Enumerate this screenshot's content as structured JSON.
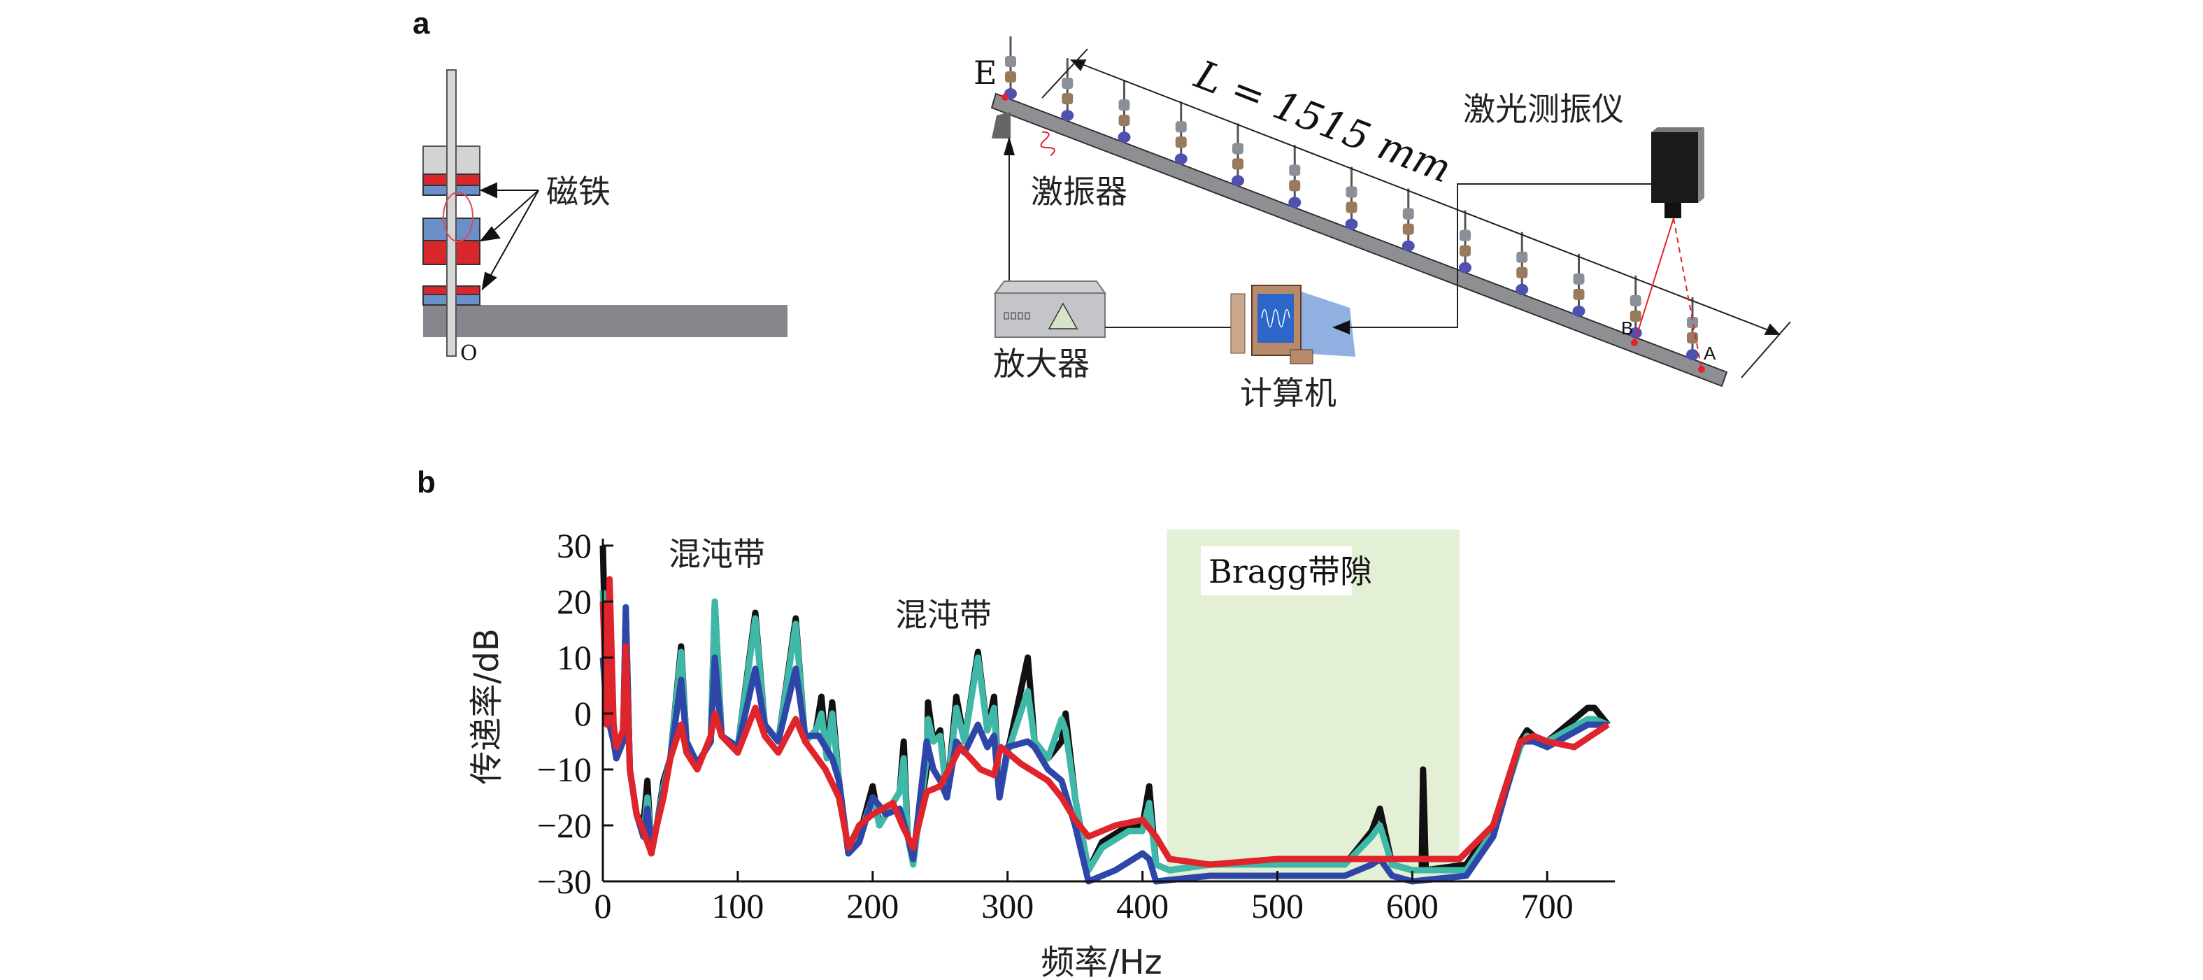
{
  "panel_a": {
    "label": "a",
    "magnet_label": "磁铁",
    "origin_label": "O",
    "endpoint_label": "E",
    "length_label": "L = 1515 mm",
    "vibrometer_label": "激光测振仪",
    "shaker_label": "激振器",
    "amplifier_label": "放大器",
    "computer_label": "计算机",
    "point_b_label": "B",
    "point_a_label": "A"
  },
  "panel_b": {
    "label": "b",
    "chaos_band_label_1": "混沌带",
    "chaos_band_label_2": "混沌带",
    "bragg_gap_label": "Bragg带隙"
  },
  "colors": {
    "black": "#111111",
    "teal": "#3fb8a8",
    "blue": "#2e46a8",
    "red": "#e0242c",
    "gap_fill": "#e4f0d6",
    "magnet_red": "#d9262b",
    "magnet_blue": "#6b8fc9"
  },
  "chart_data": {
    "type": "line",
    "title": "",
    "xlabel": "频率/Hz",
    "ylabel": "传递率/dB",
    "xlim": [
      0,
      750
    ],
    "ylim": [
      -30,
      30
    ],
    "xticks": [
      0,
      100,
      200,
      300,
      400,
      500,
      600,
      700
    ],
    "yticks": [
      30,
      20,
      10,
      0,
      -10,
      -20,
      -30
    ],
    "ytick_labels": [
      "30",
      "20",
      "10",
      "0",
      "−10",
      "−20",
      "−30"
    ],
    "shaded_region": {
      "x": [
        418,
        635
      ],
      "label": "Bragg带隙"
    },
    "series": [
      {
        "name": "black",
        "color": "#111111",
        "points": [
          [
            0,
            30
          ],
          [
            3,
            0
          ],
          [
            8,
            -5
          ],
          [
            10,
            -8
          ],
          [
            15,
            -5
          ],
          [
            17,
            18
          ],
          [
            20,
            -10
          ],
          [
            25,
            -18
          ],
          [
            30,
            -20
          ],
          [
            33,
            -12
          ],
          [
            36,
            -25
          ],
          [
            40,
            -20
          ],
          [
            45,
            -12
          ],
          [
            50,
            -8
          ],
          [
            58,
            12
          ],
          [
            62,
            -5
          ],
          [
            70,
            -9
          ],
          [
            80,
            -5
          ],
          [
            83,
            20
          ],
          [
            88,
            -4
          ],
          [
            100,
            -6
          ],
          [
            113,
            18
          ],
          [
            120,
            -2
          ],
          [
            130,
            -5
          ],
          [
            143,
            17
          ],
          [
            150,
            -5
          ],
          [
            158,
            -3
          ],
          [
            162,
            3
          ],
          [
            166,
            -8
          ],
          [
            170,
            2
          ],
          [
            175,
            -12
          ],
          [
            182,
            -25
          ],
          [
            190,
            -22
          ],
          [
            200,
            -13
          ],
          [
            205,
            -20
          ],
          [
            210,
            -18
          ],
          [
            220,
            -14
          ],
          [
            223,
            -5
          ],
          [
            226,
            -22
          ],
          [
            230,
            -26
          ],
          [
            240,
            -10
          ],
          [
            241,
            2
          ],
          [
            245,
            -5
          ],
          [
            250,
            -3
          ],
          [
            255,
            -15
          ],
          [
            262,
            3
          ],
          [
            268,
            -5
          ],
          [
            278,
            11
          ],
          [
            285,
            -3
          ],
          [
            290,
            3
          ],
          [
            294,
            -15
          ],
          [
            300,
            -7
          ],
          [
            315,
            10
          ],
          [
            320,
            -5
          ],
          [
            330,
            -8
          ],
          [
            340,
            -5
          ],
          [
            343,
            0
          ],
          [
            350,
            -15
          ],
          [
            360,
            -28
          ],
          [
            370,
            -23
          ],
          [
            390,
            -20
          ],
          [
            400,
            -20
          ],
          [
            405,
            -13
          ],
          [
            410,
            -27
          ],
          [
            420,
            -28
          ],
          [
            450,
            -27
          ],
          [
            500,
            -27
          ],
          [
            550,
            -27
          ],
          [
            570,
            -21
          ],
          [
            576,
            -17
          ],
          [
            585,
            -27
          ],
          [
            600,
            -28
          ],
          [
            607,
            -28
          ],
          [
            608,
            -10
          ],
          [
            610,
            -28
          ],
          [
            640,
            -27
          ],
          [
            660,
            -20
          ],
          [
            680,
            -5
          ],
          [
            685,
            -3
          ],
          [
            695,
            -5
          ],
          [
            700,
            -5
          ],
          [
            730,
            1
          ],
          [
            735,
            1
          ],
          [
            745,
            -2
          ]
        ]
      },
      {
        "name": "teal",
        "color": "#3fb8a8",
        "points": [
          [
            0,
            22
          ],
          [
            3,
            0
          ],
          [
            8,
            -5
          ],
          [
            10,
            -8
          ],
          [
            15,
            -5
          ],
          [
            17,
            18
          ],
          [
            20,
            -10
          ],
          [
            25,
            -18
          ],
          [
            30,
            -22
          ],
          [
            33,
            -15
          ],
          [
            36,
            -24
          ],
          [
            40,
            -20
          ],
          [
            45,
            -13
          ],
          [
            50,
            -8
          ],
          [
            58,
            11
          ],
          [
            62,
            -5
          ],
          [
            70,
            -9
          ],
          [
            80,
            -5
          ],
          [
            83,
            20
          ],
          [
            88,
            -4
          ],
          [
            100,
            -6
          ],
          [
            113,
            17
          ],
          [
            120,
            -2
          ],
          [
            130,
            -5
          ],
          [
            143,
            16
          ],
          [
            150,
            -5
          ],
          [
            158,
            -3
          ],
          [
            162,
            0
          ],
          [
            166,
            -8
          ],
          [
            170,
            0
          ],
          [
            175,
            -12
          ],
          [
            182,
            -25
          ],
          [
            190,
            -22
          ],
          [
            200,
            -15
          ],
          [
            205,
            -20
          ],
          [
            210,
            -18
          ],
          [
            220,
            -14
          ],
          [
            223,
            -8
          ],
          [
            226,
            -22
          ],
          [
            230,
            -27
          ],
          [
            240,
            -8
          ],
          [
            241,
            -1
          ],
          [
            245,
            -5
          ],
          [
            250,
            -4
          ],
          [
            255,
            -15
          ],
          [
            262,
            1
          ],
          [
            268,
            -5
          ],
          [
            278,
            10
          ],
          [
            285,
            -3
          ],
          [
            290,
            1
          ],
          [
            294,
            -15
          ],
          [
            300,
            -7
          ],
          [
            315,
            4
          ],
          [
            320,
            -5
          ],
          [
            330,
            -8
          ],
          [
            340,
            -1
          ],
          [
            343,
            -3
          ],
          [
            350,
            -15
          ],
          [
            360,
            -28
          ],
          [
            370,
            -24
          ],
          [
            390,
            -21
          ],
          [
            400,
            -21
          ],
          [
            405,
            -16
          ],
          [
            410,
            -27
          ],
          [
            420,
            -28
          ],
          [
            450,
            -27
          ],
          [
            500,
            -27
          ],
          [
            550,
            -27
          ],
          [
            570,
            -22
          ],
          [
            576,
            -20
          ],
          [
            585,
            -27
          ],
          [
            600,
            -28
          ],
          [
            640,
            -28
          ],
          [
            660,
            -21
          ],
          [
            680,
            -6
          ],
          [
            685,
            -4
          ],
          [
            695,
            -5
          ],
          [
            700,
            -5
          ],
          [
            730,
            -1
          ],
          [
            735,
            -1
          ],
          [
            745,
            -2
          ]
        ]
      },
      {
        "name": "blue",
        "color": "#2e46a8",
        "points": [
          [
            0,
            10
          ],
          [
            3,
            0
          ],
          [
            8,
            -5
          ],
          [
            10,
            -8
          ],
          [
            15,
            -5
          ],
          [
            17,
            19
          ],
          [
            20,
            -10
          ],
          [
            25,
            -18
          ],
          [
            30,
            -22
          ],
          [
            33,
            -17
          ],
          [
            36,
            -24
          ],
          [
            40,
            -20
          ],
          [
            45,
            -14
          ],
          [
            50,
            -8
          ],
          [
            58,
            6
          ],
          [
            62,
            -5
          ],
          [
            70,
            -9
          ],
          [
            80,
            -5
          ],
          [
            83,
            10
          ],
          [
            88,
            -4
          ],
          [
            100,
            -6
          ],
          [
            113,
            8
          ],
          [
            120,
            -2
          ],
          [
            130,
            -5
          ],
          [
            143,
            8
          ],
          [
            150,
            -4
          ],
          [
            160,
            -4
          ],
          [
            170,
            -8
          ],
          [
            175,
            -12
          ],
          [
            182,
            -25
          ],
          [
            190,
            -23
          ],
          [
            200,
            -15
          ],
          [
            210,
            -18
          ],
          [
            220,
            -17
          ],
          [
            226,
            -22
          ],
          [
            230,
            -26
          ],
          [
            240,
            -5
          ],
          [
            245,
            -10
          ],
          [
            250,
            -12
          ],
          [
            255,
            -15
          ],
          [
            262,
            -5
          ],
          [
            268,
            -7
          ],
          [
            278,
            -2
          ],
          [
            285,
            -6
          ],
          [
            290,
            -4
          ],
          [
            294,
            -15
          ],
          [
            300,
            -6
          ],
          [
            315,
            -5
          ],
          [
            320,
            -6
          ],
          [
            330,
            -10
          ],
          [
            340,
            -12
          ],
          [
            350,
            -20
          ],
          [
            360,
            -30
          ],
          [
            380,
            -28
          ],
          [
            400,
            -25
          ],
          [
            405,
            -26
          ],
          [
            410,
            -30
          ],
          [
            450,
            -29
          ],
          [
            500,
            -29
          ],
          [
            550,
            -29
          ],
          [
            570,
            -27
          ],
          [
            576,
            -26
          ],
          [
            585,
            -29
          ],
          [
            600,
            -30
          ],
          [
            640,
            -29
          ],
          [
            660,
            -22
          ],
          [
            680,
            -5
          ],
          [
            690,
            -5
          ],
          [
            700,
            -6
          ],
          [
            730,
            -2
          ],
          [
            745,
            -2
          ]
        ]
      },
      {
        "name": "red",
        "color": "#e0242c",
        "points": [
          [
            0,
            20
          ],
          [
            3,
            -2
          ],
          [
            5,
            24
          ],
          [
            8,
            -2
          ],
          [
            10,
            -6
          ],
          [
            15,
            -3
          ],
          [
            17,
            12
          ],
          [
            20,
            -10
          ],
          [
            25,
            -18
          ],
          [
            30,
            -21
          ],
          [
            36,
            -25
          ],
          [
            40,
            -20
          ],
          [
            45,
            -15
          ],
          [
            50,
            -8
          ],
          [
            58,
            -2
          ],
          [
            62,
            -7
          ],
          [
            70,
            -10
          ],
          [
            80,
            -4
          ],
          [
            83,
            0
          ],
          [
            88,
            -4
          ],
          [
            100,
            -7
          ],
          [
            113,
            1
          ],
          [
            120,
            -4
          ],
          [
            130,
            -7
          ],
          [
            143,
            -1
          ],
          [
            150,
            -5
          ],
          [
            165,
            -10
          ],
          [
            175,
            -15
          ],
          [
            182,
            -24
          ],
          [
            190,
            -20
          ],
          [
            200,
            -18
          ],
          [
            215,
            -16
          ],
          [
            222,
            -20
          ],
          [
            230,
            -24
          ],
          [
            240,
            -14
          ],
          [
            250,
            -13
          ],
          [
            265,
            -6
          ],
          [
            280,
            -10
          ],
          [
            290,
            -11
          ],
          [
            295,
            -6
          ],
          [
            310,
            -9
          ],
          [
            330,
            -12
          ],
          [
            340,
            -15
          ],
          [
            350,
            -19
          ],
          [
            360,
            -22
          ],
          [
            380,
            -20
          ],
          [
            400,
            -19
          ],
          [
            410,
            -22
          ],
          [
            420,
            -26
          ],
          [
            450,
            -27
          ],
          [
            500,
            -26
          ],
          [
            550,
            -26
          ],
          [
            600,
            -26
          ],
          [
            635,
            -26
          ],
          [
            660,
            -20
          ],
          [
            680,
            -5
          ],
          [
            690,
            -4
          ],
          [
            700,
            -5
          ],
          [
            720,
            -6
          ],
          [
            745,
            -2
          ]
        ]
      }
    ]
  }
}
